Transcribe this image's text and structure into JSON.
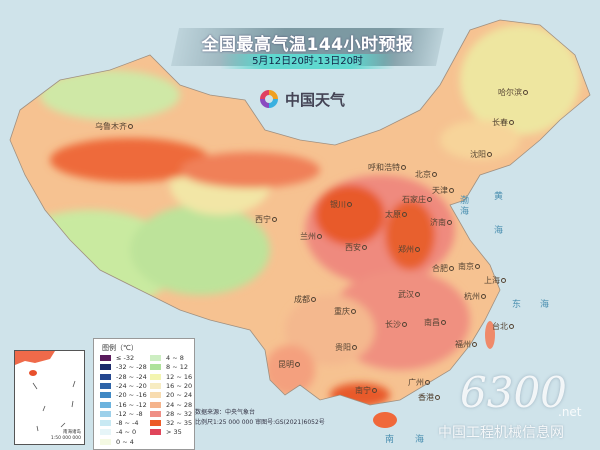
{
  "header": {
    "title": "全国最高气温144小时预报",
    "subtitle": "5月12日20时-13日20时",
    "brand": "中国天气",
    "brand_icon": "swirl-logo-icon"
  },
  "map": {
    "cities": [
      "乌鲁木齐",
      "哈尔滨",
      "长春",
      "沈阳",
      "北京",
      "天津",
      "呼和浩特",
      "石家庄",
      "太原",
      "济南",
      "银川",
      "西宁",
      "兰州",
      "郑州",
      "西安",
      "合肥",
      "南京",
      "上海",
      "杭州",
      "武汉",
      "成都",
      "重庆",
      "长沙",
      "南昌",
      "贵阳",
      "昆明",
      "福州",
      "广州",
      "南宁",
      "香港",
      "台北"
    ],
    "seas": [
      "渤",
      "海",
      "黄",
      "海",
      "东",
      "海",
      "南",
      "海"
    ],
    "colors": {
      "sea": "#cfe3ea",
      "hot": "#f0683a",
      "very_hot": "#e8502c",
      "warm": "#f4a77e",
      "mild": "#f7e4a8",
      "cool": "#bfe6a0"
    }
  },
  "legend": {
    "title": "图例（℃）",
    "items": [
      {
        "label": "≤ -32",
        "color": "#5a1a5c"
      },
      {
        "label": "-32 ~ -28",
        "color": "#1b2a6b"
      },
      {
        "label": "-28 ~ -24",
        "color": "#23468f"
      },
      {
        "label": "-24 ~ -20",
        "color": "#2e64a8"
      },
      {
        "label": "-20 ~ -16",
        "color": "#3f88c4"
      },
      {
        "label": "-16 ~ -12",
        "color": "#6cb3de"
      },
      {
        "label": "-12 ~ -8",
        "color": "#9dd0ea"
      },
      {
        "label": "-8 ~ -4",
        "color": "#c8e9f3"
      },
      {
        "label": "-4 ~ 0",
        "color": "#e6f5f8"
      },
      {
        "label": "0 ~ 4",
        "color": "#f4f9e2"
      },
      {
        "label": "4 ~ 8",
        "color": "#cdeec2"
      },
      {
        "label": "8 ~ 12",
        "color": "#aee29a"
      },
      {
        "label": "12 ~ 16",
        "color": "#f3f5b0"
      },
      {
        "label": "16 ~ 20",
        "color": "#f7ecc2"
      },
      {
        "label": "20 ~ 24",
        "color": "#f8dcb0"
      },
      {
        "label": "24 ~ 28",
        "color": "#f5b48c"
      },
      {
        "label": "28 ~ 32",
        "color": "#ef8f86"
      },
      {
        "label": "32 ~ 35",
        "color": "#ec5a26"
      },
      {
        "label": "> 35",
        "color": "#e0455a"
      }
    ]
  },
  "source": {
    "data_source": "数据来源：中央气象台",
    "scale": "比例尺1:25 000 000   审图号:GS(2021)6052号"
  },
  "inset": {
    "label": "南海诸岛",
    "scale": "1:50 000 000"
  },
  "watermark": {
    "number": "6300",
    "suffix": ".net",
    "text": "中国工程机械信息网"
  }
}
